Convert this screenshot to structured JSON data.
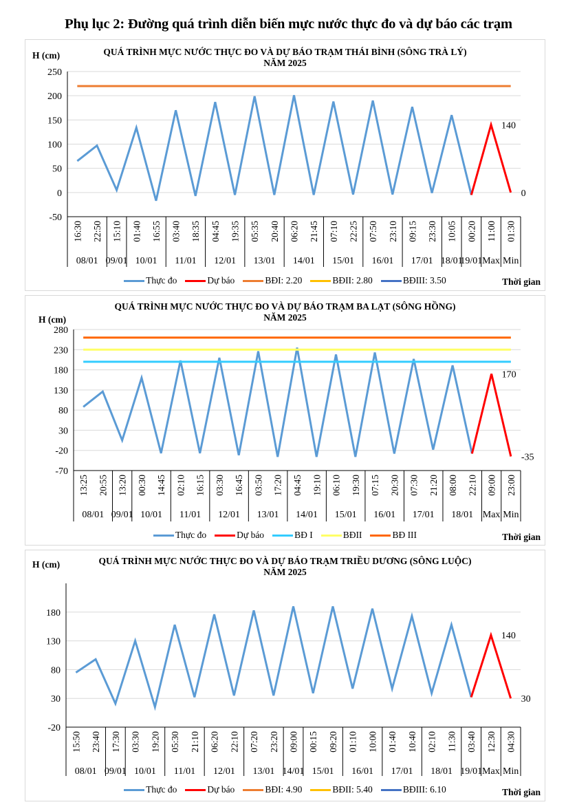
{
  "page": {
    "title": "Phụ lục 2: Đường quá trình diễn biến mực nước thực đo và dự báo các trạm"
  },
  "colors": {
    "observed": "#5b9bd5",
    "forecast": "#ff0000",
    "grid": "#d9d9d9"
  },
  "chart_data": [
    {
      "type": "line",
      "title": "QUÁ TRÌNH MỰC NƯỚC THỰC ĐO VÀ DỰ BÁO TRẠM THÁI BÌNH (SÔNG TRÀ LÝ)",
      "subtitle": "NĂM 2025",
      "ylabel": "H (cm)",
      "xlabel": "Thời gian",
      "ylim": [
        -50,
        250
      ],
      "yticks": [
        250,
        200,
        150,
        100,
        50,
        0,
        -50
      ],
      "show_tick_labels_at_min": true,
      "grid": true,
      "legend_position": "bottom",
      "x": [
        "16:30",
        "22:50",
        "15:10",
        "01:40",
        "16:55",
        "03:40",
        "18:35",
        "04:45",
        "19:35",
        "05:35",
        "20:40",
        "06:20",
        "21:45",
        "07:10",
        "22:25",
        "07:50",
        "23:10",
        "09:15",
        "23:30",
        "10:05",
        "00:20",
        "11:00",
        "01:30"
      ],
      "date_groups": [
        {
          "label": "08/01",
          "span": 2
        },
        {
          "label": "09/01",
          "span": 1
        },
        {
          "label": "10/01",
          "span": 2
        },
        {
          "label": "11/01",
          "span": 2
        },
        {
          "label": "12/01",
          "span": 2
        },
        {
          "label": "13/01",
          "span": 2
        },
        {
          "label": "14/01",
          "span": 2
        },
        {
          "label": "15/01",
          "span": 2
        },
        {
          "label": "16/01",
          "span": 2
        },
        {
          "label": "17/01",
          "span": 2
        },
        {
          "label": "18/01",
          "span": 1
        },
        {
          "label": "19/01",
          "span": 1
        },
        {
          "label": "Max",
          "span": 1
        },
        {
          "label": "Min",
          "span": 1
        }
      ],
      "series": [
        {
          "name": "Thực đo",
          "color": "#5b9bd5",
          "kind": "line",
          "start_index": 0,
          "values": [
            65,
            97,
            5,
            134,
            -17,
            170,
            -7,
            187,
            -5,
            199,
            -5,
            201,
            -5,
            188,
            -4,
            190,
            -4,
            177,
            -1,
            160,
            -5
          ]
        },
        {
          "name": "Dự báo",
          "color": "#ff0000",
          "kind": "line",
          "start_index": 20,
          "values": [
            -5,
            140,
            0
          ],
          "data_labels": [
            null,
            "140",
            "0"
          ]
        },
        {
          "name": "BĐI: 2.20",
          "color": "#ed7d31",
          "kind": "hline",
          "value": 220
        },
        {
          "name": "BĐII: 2.80",
          "color": "#ffc000",
          "kind": "legend-only",
          "value": 280
        },
        {
          "name": "BĐIII: 3.50",
          "color": "#4472c4",
          "kind": "legend-only",
          "value": 350
        }
      ]
    },
    {
      "type": "line",
      "title": "QUÁ TRÌNH MỰC NƯỚC THỰC ĐO VÀ DỰ BÁO TRẠM BA LẠT (SÔNG HỒNG)",
      "subtitle": "NĂM 2025",
      "ylabel": "H (cm)",
      "xlabel": "Thời gian",
      "ylim": [
        -70,
        280
      ],
      "yticks": [
        280,
        230,
        180,
        130,
        80,
        30,
        -20,
        -70
      ],
      "grid": true,
      "legend_position": "bottom",
      "x": [
        "13:25",
        "20:55",
        "13:20",
        "00:30",
        "14:45",
        "02:10",
        "16:15",
        "03:30",
        "16:45",
        "03:50",
        "17:20",
        "04:45",
        "19:10",
        "06:10",
        "19:30",
        "07:15",
        "20:30",
        "07:30",
        "21:20",
        "08:00",
        "22:10",
        "09:00",
        "23:00"
      ],
      "date_groups": [
        {
          "label": "08/01",
          "span": 2
        },
        {
          "label": "09/01",
          "span": 1
        },
        {
          "label": "10/01",
          "span": 2
        },
        {
          "label": "11/01",
          "span": 2
        },
        {
          "label": "12/01",
          "span": 2
        },
        {
          "label": "13/01",
          "span": 2
        },
        {
          "label": "14/01",
          "span": 2
        },
        {
          "label": "15/01",
          "span": 2
        },
        {
          "label": "16/01",
          "span": 2
        },
        {
          "label": "17/01",
          "span": 2
        },
        {
          "label": "18/01",
          "span": 2
        },
        {
          "label": "Max",
          "span": 1
        },
        {
          "label": "Min",
          "span": 1
        }
      ],
      "series": [
        {
          "name": "Thực đo",
          "color": "#5b9bd5",
          "kind": "line",
          "start_index": 0,
          "values": [
            88,
            126,
            5,
            160,
            -27,
            203,
            -27,
            210,
            -32,
            226,
            -36,
            235,
            -36,
            218,
            -36,
            223,
            -28,
            207,
            -18,
            191,
            -28
          ]
        },
        {
          "name": "Dự báo",
          "color": "#ff0000",
          "kind": "line",
          "start_index": 20,
          "values": [
            -28,
            170,
            -35
          ],
          "data_labels": [
            null,
            "170",
            "-35"
          ]
        },
        {
          "name": "BĐ I",
          "color": "#33ccff",
          "kind": "hline",
          "value": 200
        },
        {
          "name": "BĐII",
          "color": "#ffff66",
          "kind": "hline",
          "value": 230
        },
        {
          "name": "BĐ III",
          "color": "#ff6600",
          "kind": "hline",
          "value": 260
        }
      ]
    },
    {
      "type": "line",
      "title": "QUÁ TRÌNH MỰC NƯỚC THỰC ĐO VÀ DỰ BÁO TRẠM TRIỀU DƯƠNG (SÔNG LUỘC)",
      "subtitle": "NĂM 2025",
      "ylabel": "H (cm)",
      "xlabel": "Thời gian",
      "ylim": [
        -20,
        230
      ],
      "yticks": [
        180,
        130,
        80,
        30,
        -20
      ],
      "grid": true,
      "legend_position": "bottom",
      "x": [
        "15:50",
        "23:40",
        "17:30",
        "03:30",
        "19:20",
        "05:30",
        "21:10",
        "06:20",
        "22:10",
        "07:20",
        "23:20",
        "09:00",
        "00:15",
        "09:20",
        "01:10",
        "10:00",
        "01:40",
        "10:40",
        "02:10",
        "11:30",
        "03:40",
        "12:30",
        "04:30"
      ],
      "date_groups": [
        {
          "label": "08/01",
          "span": 2
        },
        {
          "label": "09/01",
          "span": 1
        },
        {
          "label": "10/01",
          "span": 2
        },
        {
          "label": "11/01",
          "span": 2
        },
        {
          "label": "12/01",
          "span": 2
        },
        {
          "label": "13/01",
          "span": 2
        },
        {
          "label": "14/01",
          "span": 1
        },
        {
          "label": "15/01",
          "span": 2
        },
        {
          "label": "16/01",
          "span": 2
        },
        {
          "label": "17/01",
          "span": 2
        },
        {
          "label": "18/01",
          "span": 2
        },
        {
          "label": "19/01",
          "span": 1
        },
        {
          "label": "Max",
          "span": 1
        },
        {
          "label": "Min",
          "span": 1
        }
      ],
      "series": [
        {
          "name": "Thực đo",
          "color": "#5b9bd5",
          "kind": "line",
          "start_index": 0,
          "values": [
            75,
            98,
            21,
            130,
            15,
            158,
            32,
            176,
            35,
            183,
            35,
            190,
            39,
            190,
            47,
            186,
            47,
            173,
            39,
            158,
            32
          ]
        },
        {
          "name": "Dự báo",
          "color": "#ff0000",
          "kind": "line",
          "start_index": 20,
          "values": [
            32,
            140,
            30
          ],
          "data_labels": [
            null,
            "140",
            "30"
          ]
        },
        {
          "name": "BĐI: 4.90",
          "color": "#ed7d31",
          "kind": "legend-only",
          "value": 490
        },
        {
          "name": "BĐII: 5.40",
          "color": "#ffc000",
          "kind": "legend-only",
          "value": 540
        },
        {
          "name": "BĐIII: 6.10",
          "color": "#4472c4",
          "kind": "legend-only",
          "value": 610
        }
      ]
    }
  ]
}
